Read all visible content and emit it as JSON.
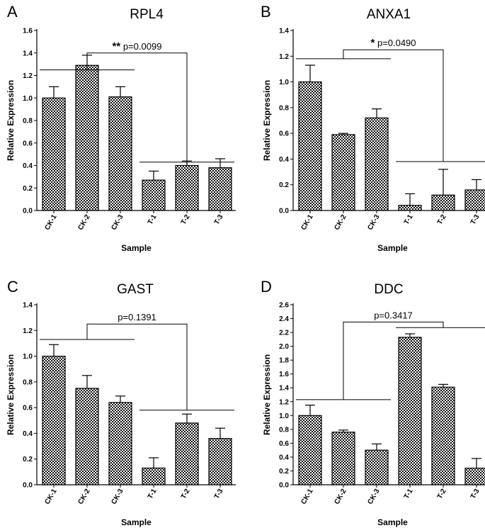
{
  "figure": {
    "panels": [
      "A",
      "B",
      "C",
      "D"
    ]
  },
  "chart_data": [
    {
      "type": "bar",
      "panel": "A",
      "title": "RPL4",
      "xlabel": "Sample",
      "ylabel": "Relative Expression",
      "categories": [
        "CK-1",
        "CK-2",
        "CK-3",
        "T-1",
        "T-2",
        "T-3"
      ],
      "values": [
        1.0,
        1.29,
        1.01,
        0.27,
        0.4,
        0.38
      ],
      "errors": [
        0.1,
        0.09,
        0.09,
        0.08,
        0.04,
        0.08
      ],
      "ylim": [
        0,
        1.6
      ],
      "yticks": [
        0.0,
        0.2,
        0.4,
        0.6,
        0.8,
        1.0,
        1.2,
        1.4,
        1.6
      ],
      "ytick_labels": [
        "0.0",
        "0.2",
        "0.4",
        "0.6",
        "0.8",
        "1.0",
        "1.2",
        "1.4",
        "1.6"
      ],
      "significance": {
        "stars": "**",
        "text": "p=0.0099",
        "group1_y": 1.25,
        "group2_y": 0.43,
        "top_y": 1.4
      }
    },
    {
      "type": "bar",
      "panel": "B",
      "title": "ANXA1",
      "xlabel": "Sample",
      "ylabel": "Relative Expression",
      "categories": [
        "CK-1",
        "CK-2",
        "CK-3",
        "T-1",
        "T-2",
        "T-3"
      ],
      "values": [
        1.0,
        0.59,
        0.72,
        0.04,
        0.12,
        0.16
      ],
      "errors": [
        0.13,
        0.01,
        0.07,
        0.09,
        0.2,
        0.08
      ],
      "ylim": [
        0,
        1.4
      ],
      "yticks": [
        0.0,
        0.2,
        0.4,
        0.6,
        0.8,
        1.0,
        1.2,
        1.4
      ],
      "ytick_labels": [
        "0.0",
        "0.2",
        "0.4",
        "0.6",
        "0.8",
        "1.0",
        "1.2",
        "1.4"
      ],
      "significance": {
        "stars": "*",
        "text": "p=0.0490",
        "group1_y": 1.18,
        "group2_y": 0.38,
        "top_y": 1.25
      }
    },
    {
      "type": "bar",
      "panel": "C",
      "title": "GAST",
      "xlabel": "Sample",
      "ylabel": "Relative Expression",
      "categories": [
        "CK-1",
        "CK-2",
        "CK-3",
        "T-1",
        "T-2",
        "T-3"
      ],
      "values": [
        1.0,
        0.75,
        0.64,
        0.13,
        0.48,
        0.36
      ],
      "errors": [
        0.09,
        0.1,
        0.05,
        0.08,
        0.07,
        0.08
      ],
      "ylim": [
        0,
        1.4
      ],
      "yticks": [
        0.0,
        0.2,
        0.4,
        0.6,
        0.8,
        1.0,
        1.2,
        1.4
      ],
      "ytick_labels": [
        "0.0",
        "0.2",
        "0.4",
        "0.6",
        "0.8",
        "1.0",
        "1.2",
        "1.4"
      ],
      "significance": {
        "stars": "",
        "text": "p=0.1391",
        "group1_y": 1.13,
        "group2_y": 0.58,
        "top_y": 1.25
      }
    },
    {
      "type": "bar",
      "panel": "D",
      "title": "DDC",
      "xlabel": "Sample",
      "ylabel": "Relative Expression",
      "categories": [
        "CK-1",
        "CK-2",
        "CK-3",
        "T-1",
        "T-2",
        "T-3"
      ],
      "values": [
        1.0,
        0.76,
        0.5,
        2.13,
        1.41,
        0.24
      ],
      "errors": [
        0.15,
        0.03,
        0.09,
        0.05,
        0.04,
        0.14
      ],
      "ylim": [
        0,
        2.6
      ],
      "yticks": [
        0.0,
        0.2,
        0.4,
        0.6,
        0.8,
        1.0,
        1.2,
        1.4,
        1.6,
        1.8,
        2.0,
        2.2,
        2.4,
        2.6
      ],
      "ytick_labels": [
        "0.0",
        "0.2",
        "0.4",
        "0.6",
        "0.8",
        "1.0",
        "1.2",
        "1.4",
        "1.6",
        "1.8",
        "2.0",
        "2.2",
        "2.4",
        "2.6"
      ],
      "significance": {
        "stars": "",
        "text": "p=0.3417",
        "group1_y": 1.23,
        "group2_y": 2.27,
        "top_y": 2.35
      }
    }
  ]
}
